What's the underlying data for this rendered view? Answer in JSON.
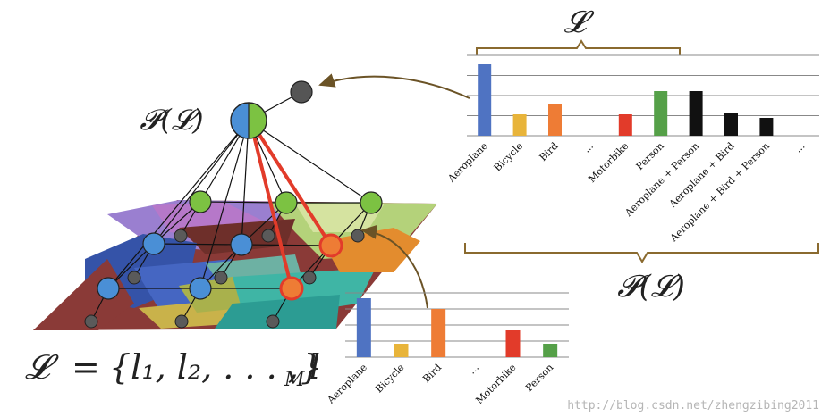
{
  "labels": {
    "top_L": "𝓛",
    "top_PL": "𝓟(𝓛)",
    "right_PL": "𝓟(𝓛)",
    "set_def": "𝓛 = {l₁, l₂, . . . , l_M}",
    "set_def_lhs": "𝓛",
    "set_def_eq": "=",
    "set_def_body": "{l₁, l₂, . . . , l",
    "set_def_sub": "M",
    "set_def_close": "}"
  },
  "watermark": "http://blog.csdn.net/zhengzibing2011",
  "colors": {
    "blue": "#4f73c2",
    "yellow": "#e8b43a",
    "orange": "#ee7c35",
    "red": "#e23b2a",
    "green": "#55a048",
    "black": "#111111",
    "node_gray": "#5a5a5a",
    "node_green": "#7cc242",
    "node_blue": "#4a8fd6",
    "bracket": "#8a6a2f"
  },
  "chart_data": [
    {
      "type": "bar",
      "name": "top-right power-set histogram",
      "categories": [
        "Aeroplane",
        "Bicycle",
        "Bird",
        "...",
        "Motorbike",
        "Person",
        "Aeroplane + Person",
        "Aeroplane + Bird",
        "Aeroplane + Bird + Person",
        "..."
      ],
      "values": [
        4,
        1.2,
        1.8,
        0,
        1.2,
        2.5,
        2.5,
        1.3,
        1,
        0
      ],
      "colors": [
        "blue",
        "yellow",
        "orange",
        null,
        "red",
        "green",
        "black",
        "black",
        "black",
        null
      ],
      "ylim": [
        0,
        4.5
      ],
      "grid": true
    },
    {
      "type": "bar",
      "name": "bottom label histogram",
      "categories": [
        "Aeroplane",
        "Bicycle",
        "Bird",
        "...",
        "Motorbike",
        "Person"
      ],
      "values": [
        3.3,
        0.75,
        2.7,
        0,
        1.5,
        0.75
      ],
      "colors": [
        "blue",
        "yellow",
        "orange",
        null,
        "red",
        "green"
      ],
      "ylim": [
        0,
        3.6
      ],
      "grid": true
    }
  ]
}
